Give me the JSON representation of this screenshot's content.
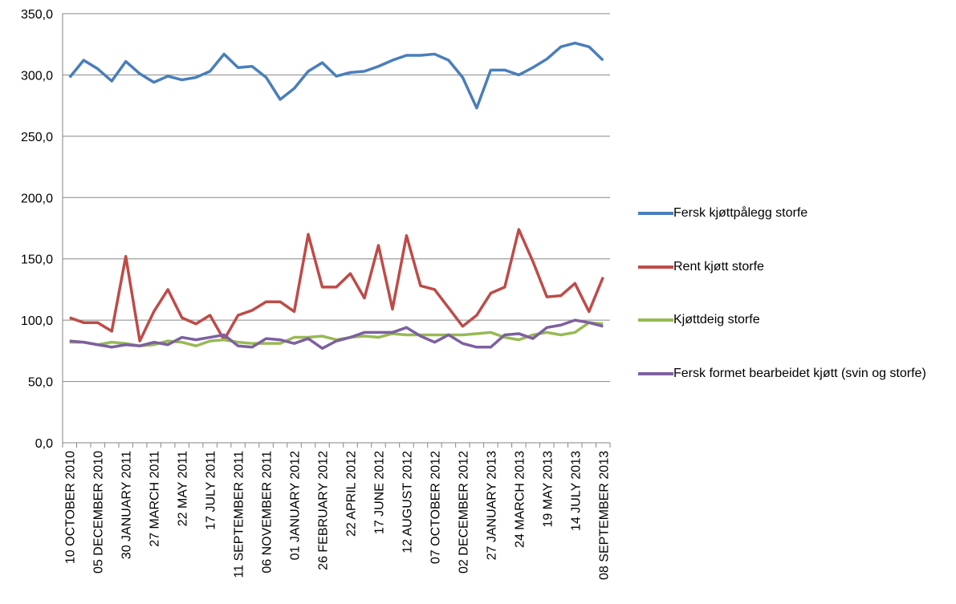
{
  "chart_data": {
    "type": "line",
    "categories": [
      "10 OCTOBER 2010",
      null,
      "05 DECEMBER 2010",
      null,
      "30 JANUARY 2011",
      null,
      "27 MARCH 2011",
      null,
      "22 MAY 2011",
      null,
      "17 JULY 2011",
      null,
      "11 SEPTEMBER 2011",
      null,
      "06 NOVEMBER 2011",
      null,
      "01 JANUARY 2012",
      null,
      "26 FEBRUARY 2012",
      null,
      "22 APRIL 2012",
      null,
      "17 JUNE 2012",
      null,
      "12 AUGUST 2012",
      null,
      "07 OCTOBER 2012",
      null,
      "02 DECEMBER 2012",
      null,
      "27 JANUARY 2013",
      null,
      "24 MARCH 2013",
      null,
      "19 MAY 2013",
      null,
      "14 JULY 2013",
      null,
      "08 SEPTEMBER 2013"
    ],
    "series": [
      {
        "name": "Fersk kjøttpålegg storfe",
        "color": "#4a7ebb",
        "values": [
          298,
          312,
          305,
          295,
          311,
          301,
          294,
          299,
          296,
          298,
          303,
          317,
          306,
          307,
          298,
          280,
          289,
          303,
          310,
          299,
          302,
          303,
          307,
          312,
          316,
          316,
          317,
          312,
          298,
          273,
          304,
          304,
          300,
          306,
          313,
          323,
          326,
          323,
          312
        ]
      },
      {
        "name": "Rent kjøtt storfe",
        "color": "#be4b48",
        "values": [
          102,
          98,
          98,
          91,
          152,
          83,
          107,
          125,
          102,
          97,
          104,
          84,
          104,
          108,
          115,
          115,
          107,
          170,
          127,
          127,
          138,
          118,
          161,
          109,
          169,
          128,
          125,
          110,
          95,
          104,
          122,
          127,
          174,
          148,
          119,
          120,
          130,
          107,
          135
        ]
      },
      {
        "name": "Kjøttdeig storfe",
        "color": "#98b954",
        "values": [
          82,
          82,
          80,
          82,
          81,
          79,
          80,
          83,
          82,
          79,
          83,
          84,
          82,
          81,
          81,
          81,
          86,
          86,
          87,
          84,
          86,
          87,
          86,
          89,
          88,
          88,
          88,
          88,
          88,
          89,
          90,
          86,
          84,
          88,
          90,
          88,
          90,
          98,
          97
        ]
      },
      {
        "name": "Fersk formet bearbeidet kjøtt (svin og storfe)",
        "color": "#7d60a0",
        "values": [
          83,
          82,
          80,
          78,
          80,
          79,
          82,
          80,
          86,
          84,
          86,
          88,
          79,
          78,
          85,
          84,
          81,
          85,
          77,
          83,
          86,
          90,
          90,
          90,
          94,
          87,
          82,
          88,
          81,
          78,
          78,
          88,
          89,
          85,
          94,
          96,
          100,
          98,
          95
        ]
      }
    ],
    "ylim": [
      0,
      350
    ],
    "yticks": [
      {
        "value": 0,
        "label": "0,0"
      },
      {
        "value": 50,
        "label": "50,0"
      },
      {
        "value": 100,
        "label": "100,0"
      },
      {
        "value": 150,
        "label": "150,0"
      },
      {
        "value": 200,
        "label": "200,0"
      },
      {
        "value": 250,
        "label": "250,0"
      },
      {
        "value": 300,
        "label": "300,0"
      },
      {
        "value": 350,
        "label": "350,0"
      }
    ],
    "grid": true,
    "legend": "right"
  }
}
